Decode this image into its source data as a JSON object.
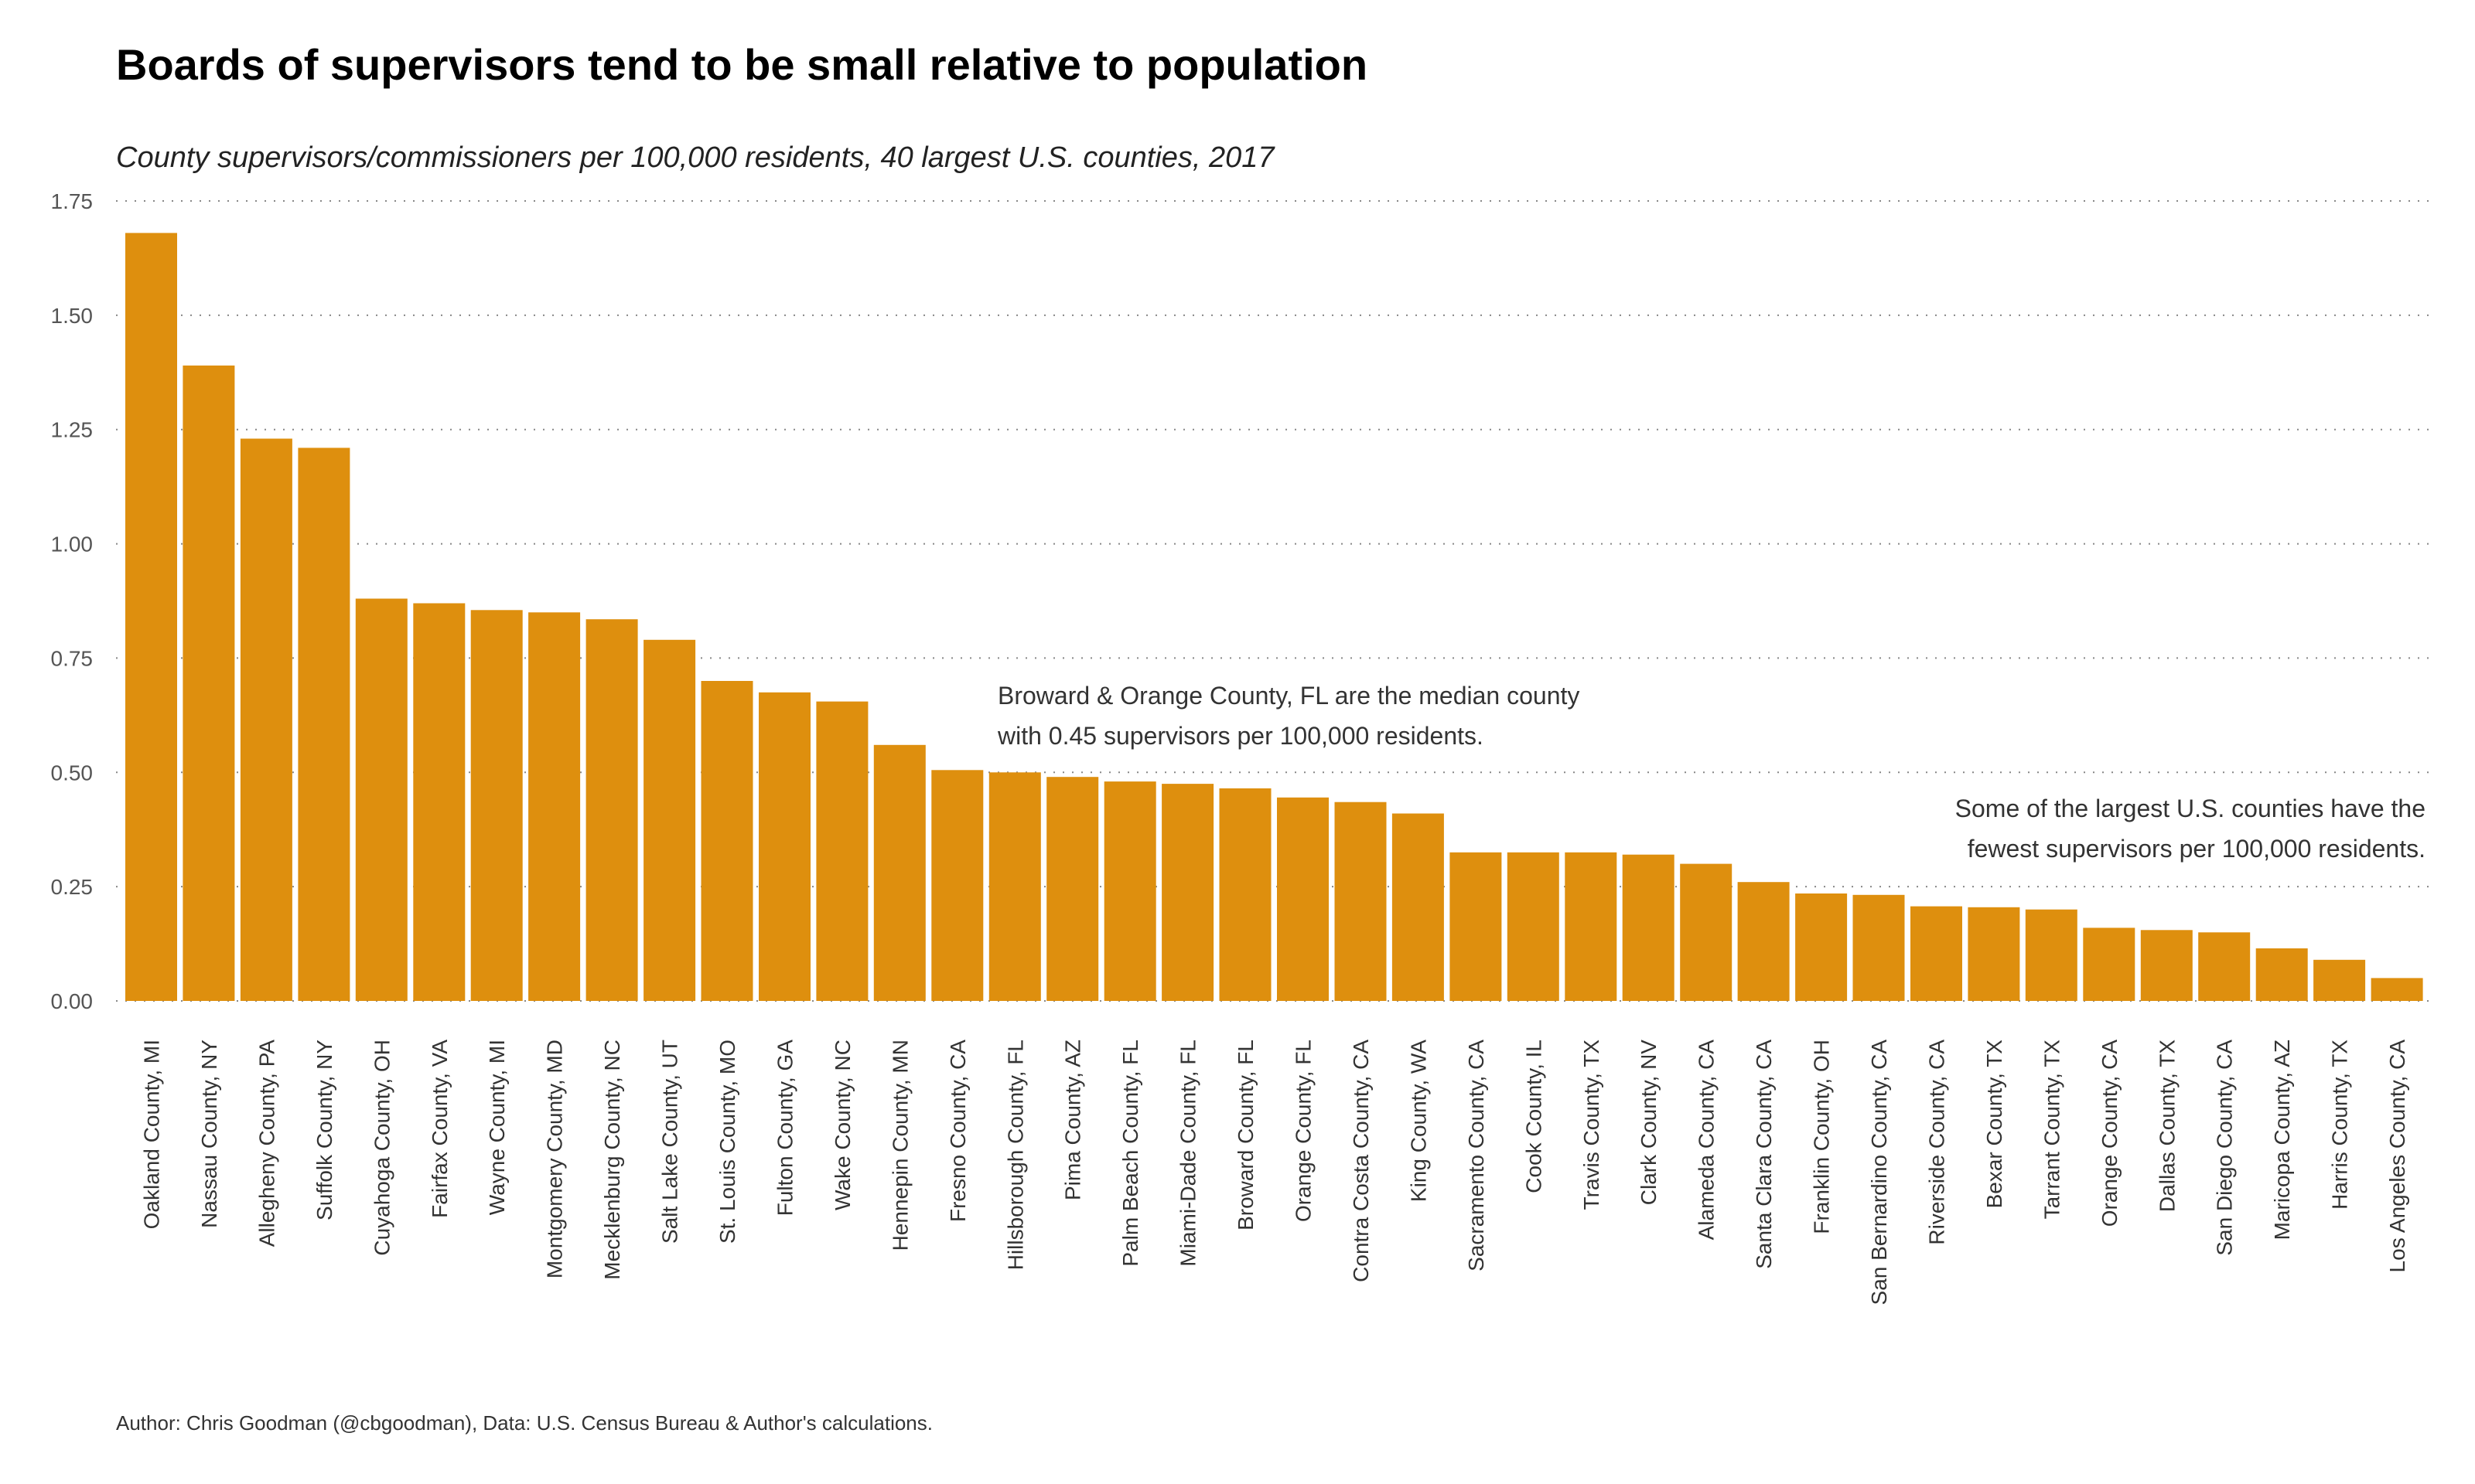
{
  "chart_data": {
    "type": "bar",
    "title": "Boards of supervisors tend to be small relative to population",
    "subtitle": "County supervisors/commissioners per 100,000 residents, 40 largest U.S. counties, 2017",
    "xlabel": "",
    "ylabel": "",
    "ylim": [
      0,
      1.75
    ],
    "yticks": [
      "0.00",
      "0.25",
      "0.50",
      "0.75",
      "1.00",
      "1.25",
      "1.50",
      "1.75"
    ],
    "grid": true,
    "bar_color": "#DE8F0E",
    "categories": [
      "Oakland County, MI",
      "Nassau County, NY",
      "Allegheny County, PA",
      "Suffolk County, NY",
      "Cuyahoga County, OH",
      "Fairfax County, VA",
      "Wayne County, MI",
      "Montgomery County, MD",
      "Mecklenburg County, NC",
      "Salt Lake County, UT",
      "St. Louis County, MO",
      "Fulton County, GA",
      "Wake County, NC",
      "Hennepin County, MN",
      "Fresno County, CA",
      "Hillsborough County, FL",
      "Pima County, AZ",
      "Palm Beach County, FL",
      "Miami-Dade County, FL",
      "Broward County, FL",
      "Orange County, FL",
      "Contra Costa County, CA",
      "King County, WA",
      "Sacramento County, CA",
      "Cook County, IL",
      "Travis County, TX",
      "Clark County, NV",
      "Alameda County, CA",
      "Santa Clara County, CA",
      "Franklin County, OH",
      "San Bernardino County, CA",
      "Riverside County, CA",
      "Bexar County, TX",
      "Tarrant County, TX",
      "Orange County, CA",
      "Dallas County, TX",
      "San Diego County, CA",
      "Maricopa County, AZ",
      "Harris County, TX",
      "Los Angeles County, CA"
    ],
    "values": [
      1.68,
      1.39,
      1.23,
      1.21,
      0.88,
      0.87,
      0.855,
      0.85,
      0.835,
      0.79,
      0.7,
      0.675,
      0.655,
      0.56,
      0.505,
      0.5,
      0.49,
      0.48,
      0.475,
      0.465,
      0.445,
      0.435,
      0.41,
      0.325,
      0.325,
      0.325,
      0.32,
      0.3,
      0.26,
      0.235,
      0.232,
      0.207,
      0.205,
      0.2,
      0.16,
      0.155,
      0.15,
      0.115,
      0.09,
      0.05
    ],
    "annotations": [
      {
        "lines": [
          "Broward & Orange County, FL are the median county",
          "with 0.45 supervisors per 100,000 residents."
        ]
      },
      {
        "lines": [
          "Some of the largest U.S. counties have the",
          "fewest supervisors per 100,000 residents."
        ]
      }
    ],
    "caption": "Author: Chris Goodman (@cbgoodman), Data: U.S. Census Bureau & Author's calculations."
  }
}
